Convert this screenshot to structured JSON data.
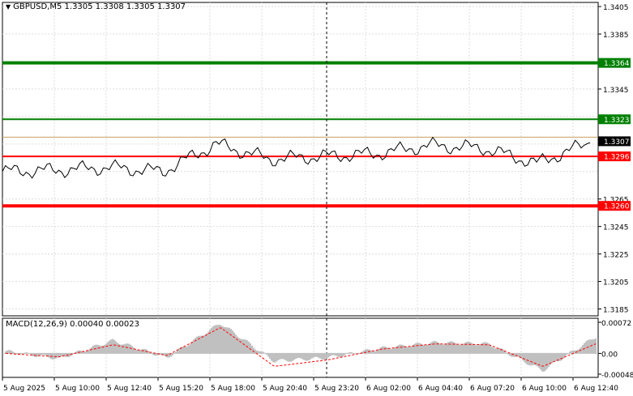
{
  "header": {
    "triangle": "▼",
    "symbol": "GBPUSD,M5",
    "ohlc": "1.3305 1.3308 1.3305 1.3307"
  },
  "price_axis": {
    "ticks": [
      "1.3405",
      "1.3385",
      "1.3345",
      "1.3265",
      "1.3245",
      "1.3225",
      "1.3205",
      "1.3185"
    ],
    "tick_values": [
      1.3405,
      1.3385,
      1.3345,
      1.3265,
      1.3245,
      1.3225,
      1.3205,
      1.3185
    ],
    "ylim": [
      1.318,
      1.3408
    ]
  },
  "levels": [
    {
      "label": "1.3364",
      "value": 1.3364,
      "color": "#008000",
      "role": "thick-green"
    },
    {
      "label": "1.3323",
      "value": 1.3323,
      "color": "#008000",
      "role": "green"
    },
    {
      "label": "1.3296",
      "value": 1.3296,
      "color": "#ff0000",
      "role": "red"
    },
    {
      "label": "1.3260",
      "value": 1.326,
      "color": "#ff0000",
      "role": "thick-red"
    }
  ],
  "current_price": {
    "label": "1.3307",
    "value": 1.3307
  },
  "macd": {
    "title": "MACD(12,26,9) 0.00040 0.00023",
    "ticks": [
      "0.00072",
      "0.00",
      "-0.00048"
    ],
    "tick_values": [
      0.00072,
      0.0,
      -0.00048
    ]
  },
  "time_axis": [
    "5 Aug 2025",
    "5 Aug 10:00",
    "5 Aug 12:40",
    "5 Aug 15:20",
    "5 Aug 18:00",
    "5 Aug 20:40",
    "5 Aug 23:20",
    "6 Aug 02:00",
    "6 Aug 04:40",
    "6 Aug 07:20",
    "6 Aug 10:00",
    "6 Aug 12:40"
  ],
  "colors": {
    "price_line": "#000000",
    "macd_hist": "#c0c0c0",
    "macd_signal": "#ff0000",
    "grid": "#d8d8d8"
  },
  "chart_data": {
    "type": "line",
    "title": "GBPUSD,M5",
    "x": [
      "5 Aug 2025",
      "5 Aug 10:00",
      "5 Aug 12:40",
      "5 Aug 15:20",
      "5 Aug 18:00",
      "5 Aug 20:40",
      "5 Aug 23:20",
      "6 Aug 02:00",
      "6 Aug 04:40",
      "6 Aug 07:20",
      "6 Aug 10:00",
      "6 Aug 12:40"
    ],
    "series": [
      {
        "name": "",
        "values": [
          1.3285,
          1.3286,
          1.3288,
          1.3285,
          1.3305,
          1.3294,
          1.3296,
          1.3298,
          1.3304,
          1.3302,
          1.3291,
          1.3306
        ]
      }
    ],
    "macd_hist": [
      5e-05,
      -0.00012,
      0.0003,
      -0.0001,
      0.0007,
      -0.00018,
      -0.0001,
      0.00012,
      0.00025,
      0.00022,
      -0.0004,
      0.0004
    ],
    "macd_signal": [
      0.0,
      -8e-05,
      0.0002,
      -5e-05,
      0.0006,
      -0.0003,
      -0.00015,
      0.0001,
      0.00022,
      0.0002,
      -0.0003,
      0.00023
    ],
    "ylim": [
      1.318,
      1.3408
    ],
    "grid": true
  }
}
